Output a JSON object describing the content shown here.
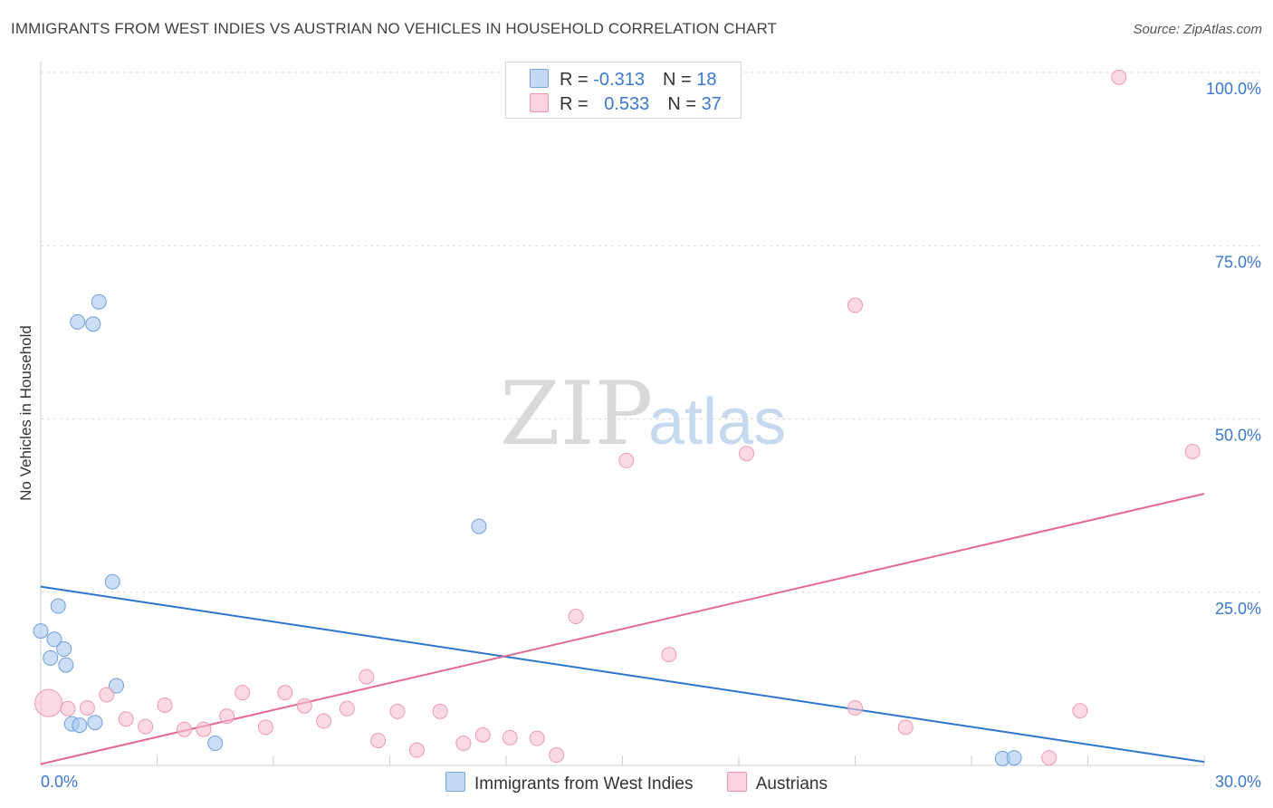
{
  "title": "IMMIGRANTS FROM WEST INDIES VS AUSTRIAN NO VEHICLES IN HOUSEHOLD CORRELATION CHART",
  "source": "Source: ZipAtlas.com",
  "watermark": {
    "zip": "ZIP",
    "atlas": "atlas"
  },
  "legend": {
    "rows": [
      {
        "r_label": "R = ",
        "r_value": "-0.313",
        "n_label": "N = ",
        "n_value": "18",
        "color": "#a9c8f0",
        "border": "#7aa6e0"
      },
      {
        "r_label": "R = ",
        "r_value": "0.533",
        "n_label": "N = ",
        "n_value": "37",
        "color": "#f9c0d0",
        "border": "#ee94ae"
      }
    ]
  },
  "bottom_legend": [
    {
      "label": "Immigrants from West Indies",
      "color": "#c3d9f5",
      "border": "#7aa6e0"
    },
    {
      "label": "Austrians",
      "color": "#fcd3de",
      "border": "#ee94ae"
    }
  ],
  "chart_data": {
    "type": "scatter",
    "title": "IMMIGRANTS FROM WEST INDIES VS AUSTRIAN NO VEHICLES IN HOUSEHOLD CORRELATION CHART",
    "xlabel": "",
    "ylabel": "No Vehicles in Household",
    "xlim": [
      0,
      30
    ],
    "ylim": [
      0,
      100
    ],
    "x_tick_labels": [
      {
        "value": 0,
        "label": "0.0%"
      },
      {
        "value": 30,
        "label": "30.0%"
      }
    ],
    "y_tick_labels": [
      {
        "value": 25,
        "label": "25.0%"
      },
      {
        "value": 50,
        "label": "50.0%"
      },
      {
        "value": 75,
        "label": "75.0%"
      },
      {
        "value": 100,
        "label": "100.0%"
      }
    ],
    "series": [
      {
        "name": "Immigrants from West Indies",
        "color": "#a9c8f0",
        "stroke": "#6f9fdc",
        "trend_color": "#2f74d0",
        "trend": {
          "x": [
            0,
            30
          ],
          "y": [
            25.8,
            0.5
          ]
        },
        "points": [
          {
            "x": 0.0,
            "y": 19.4,
            "s": 1
          },
          {
            "x": 0.25,
            "y": 15.5,
            "s": 1
          },
          {
            "x": 0.35,
            "y": 18.2,
            "s": 1
          },
          {
            "x": 0.45,
            "y": 23.0,
            "s": 1
          },
          {
            "x": 0.6,
            "y": 16.8,
            "s": 1
          },
          {
            "x": 0.65,
            "y": 14.5,
            "s": 1
          },
          {
            "x": 0.8,
            "y": 6.0,
            "s": 1
          },
          {
            "x": 0.95,
            "y": 64.0,
            "s": 1
          },
          {
            "x": 1.0,
            "y": 5.8,
            "s": 1
          },
          {
            "x": 1.35,
            "y": 63.7,
            "s": 1
          },
          {
            "x": 1.4,
            "y": 6.2,
            "s": 1
          },
          {
            "x": 1.5,
            "y": 66.9,
            "s": 1
          },
          {
            "x": 1.85,
            "y": 26.5,
            "s": 1
          },
          {
            "x": 1.95,
            "y": 11.5,
            "s": 1
          },
          {
            "x": 4.5,
            "y": 3.2,
            "s": 1
          },
          {
            "x": 11.3,
            "y": 34.5,
            "s": 1
          },
          {
            "x": 24.8,
            "y": 1.0,
            "s": 1
          },
          {
            "x": 25.1,
            "y": 1.1,
            "s": 1
          }
        ]
      },
      {
        "name": "Austrians",
        "color": "#f9c0d0",
        "stroke": "#ec9ab2",
        "trend_color": "#e46a92",
        "trend": {
          "x": [
            0,
            30
          ],
          "y": [
            0.2,
            39.2
          ]
        },
        "points": [
          {
            "x": 0.2,
            "y": 9.0,
            "s": 2
          },
          {
            "x": 0.7,
            "y": 8.2,
            "s": 1
          },
          {
            "x": 1.2,
            "y": 8.3,
            "s": 1
          },
          {
            "x": 1.7,
            "y": 10.2,
            "s": 1
          },
          {
            "x": 2.2,
            "y": 6.7,
            "s": 1
          },
          {
            "x": 2.7,
            "y": 5.6,
            "s": 1
          },
          {
            "x": 3.2,
            "y": 8.7,
            "s": 1
          },
          {
            "x": 3.7,
            "y": 5.2,
            "s": 1
          },
          {
            "x": 4.2,
            "y": 5.2,
            "s": 1
          },
          {
            "x": 4.8,
            "y": 7.1,
            "s": 1
          },
          {
            "x": 5.2,
            "y": 10.5,
            "s": 1
          },
          {
            "x": 5.8,
            "y": 5.5,
            "s": 1
          },
          {
            "x": 6.3,
            "y": 10.5,
            "s": 1
          },
          {
            "x": 6.8,
            "y": 8.6,
            "s": 1
          },
          {
            "x": 7.3,
            "y": 6.4,
            "s": 1
          },
          {
            "x": 7.9,
            "y": 8.2,
            "s": 1
          },
          {
            "x": 8.4,
            "y": 12.8,
            "s": 1
          },
          {
            "x": 8.7,
            "y": 3.6,
            "s": 1
          },
          {
            "x": 9.2,
            "y": 7.8,
            "s": 1
          },
          {
            "x": 9.7,
            "y": 2.2,
            "s": 1
          },
          {
            "x": 10.3,
            "y": 7.8,
            "s": 1
          },
          {
            "x": 10.9,
            "y": 3.2,
            "s": 1
          },
          {
            "x": 11.4,
            "y": 4.4,
            "s": 1
          },
          {
            "x": 12.1,
            "y": 4.0,
            "s": 1
          },
          {
            "x": 12.8,
            "y": 3.9,
            "s": 1
          },
          {
            "x": 13.3,
            "y": 1.5,
            "s": 1
          },
          {
            "x": 13.8,
            "y": 21.5,
            "s": 1
          },
          {
            "x": 15.1,
            "y": 44.0,
            "s": 1
          },
          {
            "x": 16.2,
            "y": 16.0,
            "s": 1
          },
          {
            "x": 18.2,
            "y": 45.0,
            "s": 1
          },
          {
            "x": 21.0,
            "y": 66.4,
            "s": 1
          },
          {
            "x": 21.0,
            "y": 8.3,
            "s": 1
          },
          {
            "x": 22.3,
            "y": 5.5,
            "s": 1
          },
          {
            "x": 26.0,
            "y": 1.1,
            "s": 1
          },
          {
            "x": 26.8,
            "y": 7.9,
            "s": 1
          },
          {
            "x": 27.8,
            "y": 99.3,
            "s": 1
          },
          {
            "x": 29.7,
            "y": 45.3,
            "s": 1
          }
        ]
      }
    ]
  }
}
